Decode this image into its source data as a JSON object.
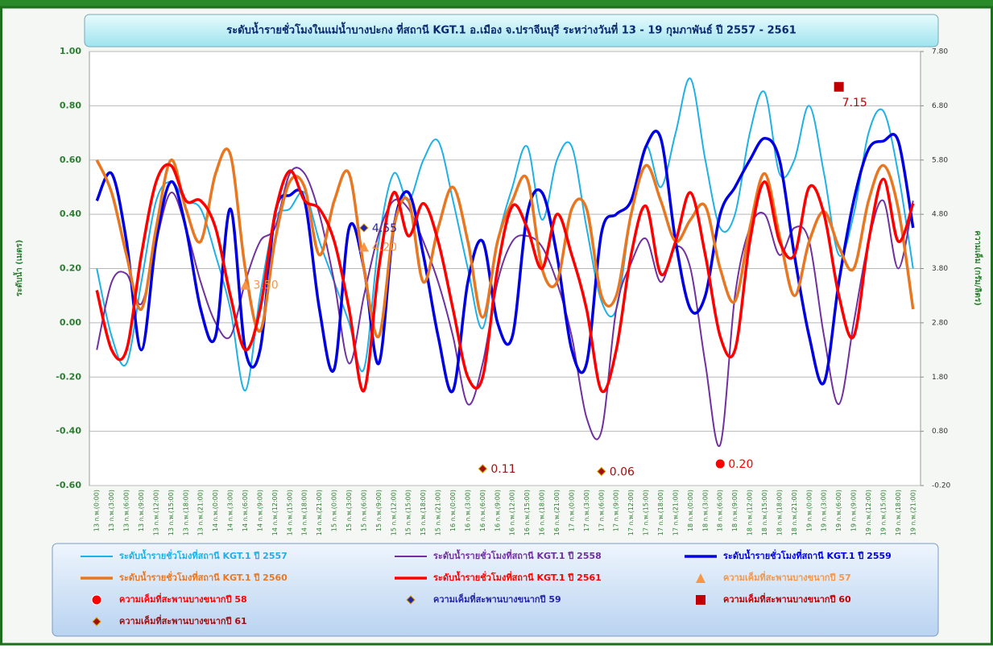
{
  "chart_data": {
    "type": "line",
    "title": "ระดับน้ำรายชั่วโมงในแม่น้ำบางปะกง ที่สถานี KGT.1 อ.เมือง จ.ปราจีนบุรี ระหว่างวันที่ 13 - 19 กุมภาพันธ์ ปี 2557 - 2561",
    "y_label": "ระดับน้ำ (เมตร)",
    "y2_label": "ความเค็ม (กรัม/ลิตร)",
    "ylim": [
      -0.6,
      1.0
    ],
    "yticks": [
      {
        "value": 1.0,
        "label": "1.00"
      },
      {
        "value": 0.8,
        "label": "0.80"
      },
      {
        "value": 0.6,
        "label": "0.60"
      },
      {
        "value": 0.4,
        "label": "0.40"
      },
      {
        "value": 0.2,
        "label": "0.20"
      },
      {
        "value": 0,
        "label": "0.00"
      },
      {
        "value": -0.2,
        "label": "-0.20"
      },
      {
        "value": -0.4,
        "label": "-0.40"
      },
      {
        "value": -0.6,
        "label": "-0.60"
      }
    ],
    "y2lim": [
      -0.2,
      7.8
    ],
    "y2ticks": [
      {
        "value": 7.8,
        "label": "7.80"
      },
      {
        "value": 6.8,
        "label": "6.80"
      },
      {
        "value": 5.8,
        "label": "5.80"
      },
      {
        "value": 4.8,
        "label": "4.80"
      },
      {
        "value": 3.8,
        "label": "3.80"
      },
      {
        "value": 2.8,
        "label": "2.80"
      },
      {
        "value": 1.8,
        "label": "1.80"
      },
      {
        "value": 0.8,
        "label": "0.80"
      },
      {
        "value": -0.2,
        "label": "-0.20"
      }
    ],
    "grid": true,
    "categories": [
      "13 ก.พ.(0:00)",
      "13 ก.พ.(3:00)",
      "13 ก.พ.(6:00)",
      "13 ก.พ.(9:00)",
      "13 ก.พ.(12:00)",
      "13 ก.พ.(15:00)",
      "13 ก.พ.(18:00)",
      "13 ก.พ.(21:00)",
      "14 ก.พ.(0:00)",
      "14 ก.พ.(3:00)",
      "14 ก.พ.(6:00)",
      "14 ก.พ.(9:00)",
      "14 ก.พ.(12:00)",
      "14 ก.พ.(15:00)",
      "14 ก.พ.(18:00)",
      "14 ก.พ.(21:00)",
      "15 ก.พ.(0:00)",
      "15 ก.พ.(3:00)",
      "15 ก.พ.(6:00)",
      "15 ก.พ.(9:00)",
      "15 ก.พ.(12:00)",
      "15 ก.พ.(15:00)",
      "15 ก.พ.(18:00)",
      "15 ก.พ.(21:00)",
      "16 ก.พ.(0:00)",
      "16 ก.พ.(3:00)",
      "16 ก.พ.(6:00)",
      "16 ก.พ.(9:00)",
      "16 ก.พ.(12:00)",
      "16 ก.พ.(15:00)",
      "16 ก.พ.(18:00)",
      "16 ก.พ.(21:00)",
      "17 ก.พ.(0:00)",
      "17 ก.พ.(3:00)",
      "17 ก.พ.(6:00)",
      "17 ก.พ.(9:00)",
      "17 ก.พ.(12:00)",
      "17 ก.พ.(15:00)",
      "17 ก.พ.(18:00)",
      "17 ก.พ.(21:00)",
      "18 ก.พ.(0:00)",
      "18 ก.พ.(3:00)",
      "18 ก.พ.(6:00)",
      "18 ก.พ.(9:00)",
      "18 ก.พ.(12:00)",
      "18 ก.พ.(15:00)",
      "18 ก.พ.(18:00)",
      "18 ก.พ.(21:00)",
      "19 ก.พ.(0:00)",
      "19 ก.พ.(3:00)",
      "19 ก.พ.(6:00)",
      "19 ก.พ.(9:00)",
      "19 ก.พ.(12:00)",
      "19 ก.พ.(15:00)",
      "19 ก.พ.(18:00)",
      "19 ก.พ.(21:00)"
    ],
    "series": [
      {
        "name": "ระดับน้ำรายชั่วโมงที่สถานี KGT.1 ปี 2557",
        "type": "line",
        "color": "#1eb1e6",
        "values": [
          0.2,
          -0.05,
          -0.15,
          0.15,
          0.45,
          0.52,
          0.45,
          0.42,
          0.25,
          0.05,
          -0.25,
          0.1,
          0.38,
          0.42,
          0.48,
          0.3,
          0.15,
          0,
          -0.17,
          0.3,
          0.55,
          0.45,
          0.6,
          0.67,
          0.45,
          0.2,
          -0.02,
          0.3,
          0.5,
          0.65,
          0.38,
          0.6,
          0.65,
          0.35,
          0.08,
          0.05,
          0.4,
          0.65,
          0.5,
          0.7,
          0.9,
          0.6,
          0.35,
          0.4,
          0.7,
          0.85,
          0.55,
          0.6,
          0.8,
          0.55,
          0.25,
          0.4,
          0.7,
          0.78,
          0.55,
          0.2
        ]
      },
      {
        "name": "ระดับน้ำรายชั่วโมงที่สถานี KGT.1 ปี 2558",
        "type": "line",
        "color": "#7030a0",
        "values": [
          -0.1,
          0.15,
          0.18,
          0.07,
          0.3,
          0.48,
          0.35,
          0.15,
          0,
          -0.05,
          0.15,
          0.3,
          0.35,
          0.55,
          0.55,
          0.4,
          0.15,
          -0.15,
          0.1,
          0.33,
          0.45,
          0.42,
          0.3,
          0.15,
          -0.05,
          -0.3,
          -0.15,
          0.15,
          0.3,
          0.32,
          0.28,
          0.15,
          -0.05,
          -0.35,
          -0.4,
          0.05,
          0.22,
          0.31,
          0.15,
          0.28,
          0.2,
          -0.15,
          -0.45,
          0.1,
          0.35,
          0.4,
          0.25,
          0.35,
          0.3,
          -0.05,
          -0.3,
          0,
          0.3,
          0.45,
          0.2,
          0.45
        ]
      },
      {
        "name": "ระดับน้ำรายชั่วโมงที่สถานี KGT.1 ปี 2559",
        "type": "line",
        "color": "#0000e0",
        "values": [
          0.45,
          0.55,
          0.3,
          -0.1,
          0.3,
          0.52,
          0.35,
          0.05,
          -0.05,
          0.42,
          -0.1,
          -0.1,
          0.4,
          0.47,
          0.45,
          0.05,
          -0.17,
          0.35,
          0.2,
          -0.15,
          0.35,
          0.48,
          0.25,
          -0.05,
          -0.25,
          0.15,
          0.3,
          0,
          -0.05,
          0.4,
          0.48,
          0.25,
          -0.1,
          -0.15,
          0.33,
          0.4,
          0.45,
          0.65,
          0.68,
          0.3,
          0.05,
          0.1,
          0.4,
          0.5,
          0.6,
          0.68,
          0.6,
          0.25,
          -0.05,
          -0.22,
          0.15,
          0.45,
          0.64,
          0.67,
          0.67,
          0.35
        ]
      },
      {
        "name": "ระดับน้ำรายชั่วโมงที่สถานี KGT.1 ปี 2560",
        "type": "line",
        "color": "#e87722",
        "values": [
          0.6,
          0.48,
          0.25,
          0.05,
          0.35,
          0.6,
          0.42,
          0.3,
          0.55,
          0.62,
          0.2,
          -0.03,
          0.3,
          0.52,
          0.5,
          0.25,
          0.45,
          0.55,
          0.2,
          -0.05,
          0.35,
          0.45,
          0.15,
          0.35,
          0.5,
          0.3,
          0.02,
          0.3,
          0.45,
          0.53,
          0.2,
          0.15,
          0.42,
          0.42,
          0.1,
          0.1,
          0.4,
          0.58,
          0.45,
          0.3,
          0.38,
          0.43,
          0.2,
          0.08,
          0.35,
          0.55,
          0.32,
          0.1,
          0.3,
          0.41,
          0.28,
          0.2,
          0.45,
          0.58,
          0.42,
          0.05
        ]
      },
      {
        "name": "ระดับน้ำรายชั่วโมงที่สถานี KGT.1 ปี 2561",
        "type": "line",
        "color": "#ff0000",
        "values": [
          0.12,
          -0.1,
          -0.1,
          0.25,
          0.52,
          0.58,
          0.45,
          0.45,
          0.35,
          0.1,
          -0.1,
          0.05,
          0.4,
          0.56,
          0.45,
          0.42,
          0.3,
          0.05,
          -0.25,
          0.2,
          0.48,
          0.32,
          0.44,
          0.3,
          0.05,
          -0.2,
          -0.2,
          0.2,
          0.43,
          0.35,
          0.2,
          0.4,
          0.25,
          0.05,
          -0.25,
          -0.1,
          0.25,
          0.43,
          0.18,
          0.3,
          0.48,
          0.25,
          -0.05,
          -0.1,
          0.3,
          0.52,
          0.3,
          0.25,
          0.5,
          0.4,
          0.1,
          -0.05,
          0.3,
          0.53,
          0.3,
          0.44
        ]
      },
      {
        "name": "ความเค็มที่สะพานบางขนากปี 57",
        "type": "scatter",
        "marker": "triangle",
        "axis": "y2",
        "color": "#f79646",
        "x": [
          "14 ก.พ.(6:00)",
          "15 ก.พ.(6:00)"
        ],
        "values": [
          3.5,
          4.2
        ],
        "value_labels": [
          "3.50",
          "4.20"
        ]
      },
      {
        "name": "ความเค็มที่สะพานบางขนากปี 58",
        "type": "scatter",
        "marker": "circle",
        "axis": "y2",
        "color": "#ff0000",
        "x": [
          "18 ก.พ.(6:00)"
        ],
        "values": [
          0.2
        ],
        "value_labels": [
          "0.20"
        ]
      },
      {
        "name": "ความเค็มที่สะพานบางขนากปี 59",
        "type": "scatter",
        "marker": "diamond",
        "axis": "y2",
        "color": "#2424a8",
        "x": [
          "15 ก.พ.(6:00)"
        ],
        "values": [
          4.55
        ],
        "value_labels": [
          "4.55"
        ]
      },
      {
        "name": "ความเค็มที่สะพานบางขนากปี 60",
        "type": "scatter",
        "marker": "square",
        "axis": "y2",
        "color": "#c00000",
        "x": [
          "19 ก.พ.(6:00)"
        ],
        "values": [
          7.15
        ],
        "value_labels": [
          "7.15"
        ]
      },
      {
        "name": "ความเค็มที่สะพานบางขนากปี 61",
        "type": "scatter",
        "marker": "diamond",
        "axis": "y2",
        "color": "#a01010",
        "x": [
          "16 ก.พ.(6:00)",
          "17 ก.พ.(6:00)"
        ],
        "values": [
          0.11,
          0.06
        ],
        "value_labels": [
          "0.11",
          "0.06"
        ]
      }
    ]
  }
}
